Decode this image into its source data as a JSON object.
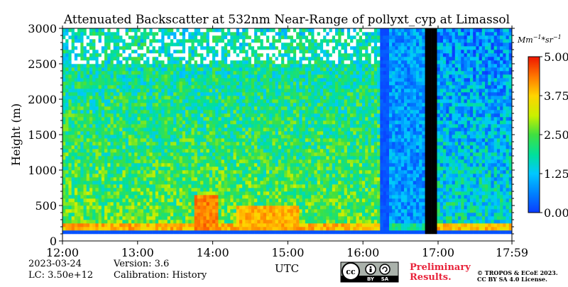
{
  "chart_data": {
    "type": "heatmap",
    "title": "Attenuated Backscatter at 532nm Near-Range of pollyxt_cyp at Limassol",
    "xlabel": "UTC",
    "ylabel": "Height (m)",
    "x_ticks": [
      "12:00",
      "13:00",
      "14:00",
      "15:00",
      "16:00",
      "17:00",
      "17:59"
    ],
    "x_range_hours": [
      12.0,
      17.983
    ],
    "y_ticks": [
      0,
      500,
      1000,
      1500,
      2000,
      2500,
      3000
    ],
    "ylim": [
      0,
      3000
    ],
    "colorbar": {
      "unit": "Mm^{-1}*sr^{-1}",
      "unit_display": [
        "Mm",
        "−1",
        "*sr",
        "−1"
      ],
      "ticks": [
        "0.00",
        "1.25",
        "2.50",
        "3.75",
        "5.00"
      ],
      "range": [
        0,
        5
      ],
      "colormap": "jet"
    },
    "features": {
      "surface_bright_layer_m": [
        100,
        130
      ],
      "boundary_layer_top_m": 250,
      "data_gap_utc": [
        "16:50",
        "17:00"
      ],
      "cloud_column_utc": [
        "16:14",
        "16:20"
      ],
      "aerosol_plumes": [
        {
          "start_utc": "13:45",
          "end_utc": "14:05",
          "top_m": 650,
          "value": 4.6
        },
        {
          "start_utc": "14:20",
          "end_utc": "15:10",
          "top_m": 500,
          "value": 4.3
        }
      ]
    }
  },
  "footer": {
    "date": "2023-03-24",
    "lc": "LC: 3.50e+12",
    "version": "Version: 3.6",
    "calibration": "Calibration: History",
    "preliminary_line1": "Preliminary",
    "preliminary_line2": "Results.",
    "copyright_line1": "© TROPOS & ECoE 2023.",
    "copyright_line2": "CC BY SA 4.0 License.",
    "cc_badge": {
      "icons": [
        "cc-icon",
        "by-icon",
        "sa-icon"
      ],
      "labels": [
        "BY",
        "SA"
      ]
    }
  },
  "colors": {
    "background": "#ffffff",
    "preliminary": "#e8243b",
    "gap": "#000000"
  }
}
